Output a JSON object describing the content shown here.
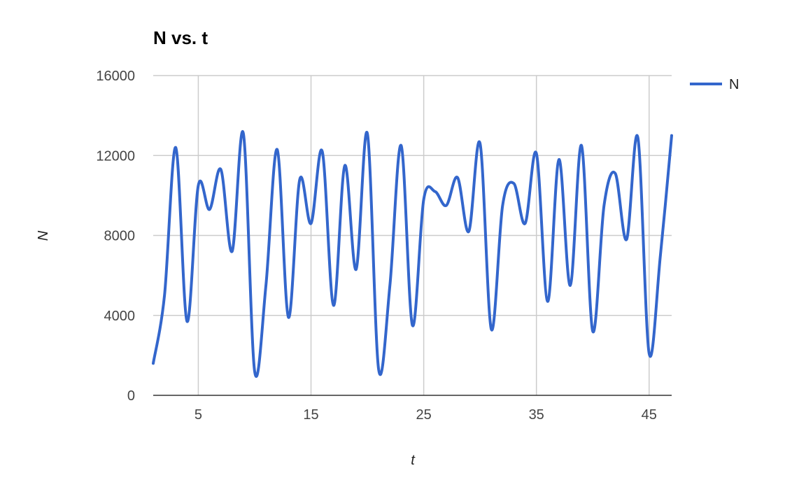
{
  "chart_data": {
    "type": "line",
    "title": "N vs. t",
    "xlabel": "t",
    "ylabel": "N",
    "xlim": [
      1,
      47
    ],
    "ylim": [
      0,
      16000
    ],
    "x_ticks": [
      5,
      15,
      25,
      35,
      45
    ],
    "y_ticks": [
      0,
      4000,
      8000,
      12000,
      16000
    ],
    "grid": true,
    "legend": "right",
    "line_color": "#3366cc",
    "series": [
      {
        "name": "N",
        "x": [
          1,
          2,
          3,
          4,
          5,
          6,
          7,
          8,
          9,
          10,
          11,
          12,
          13,
          14,
          15,
          16,
          17,
          18,
          19,
          20,
          21,
          22,
          23,
          24,
          25,
          26,
          27,
          28,
          29,
          30,
          31,
          32,
          33,
          34,
          35,
          36,
          37,
          38,
          39,
          40,
          41,
          42,
          43,
          44,
          45,
          46,
          47
        ],
        "values": [
          1600,
          5000,
          12400,
          3700,
          10500,
          9300,
          11300,
          7200,
          13100,
          1200,
          5500,
          12300,
          3900,
          10800,
          8600,
          12200,
          4500,
          11500,
          6300,
          13100,
          1300,
          5500,
          12500,
          3500,
          9800,
          10200,
          9500,
          10900,
          8200,
          12600,
          3300,
          9500,
          10600,
          8600,
          12100,
          4700,
          11800,
          5500,
          12500,
          3200,
          9500,
          11100,
          7800,
          12900,
          2100,
          7000,
          13000
        ]
      }
    ]
  }
}
